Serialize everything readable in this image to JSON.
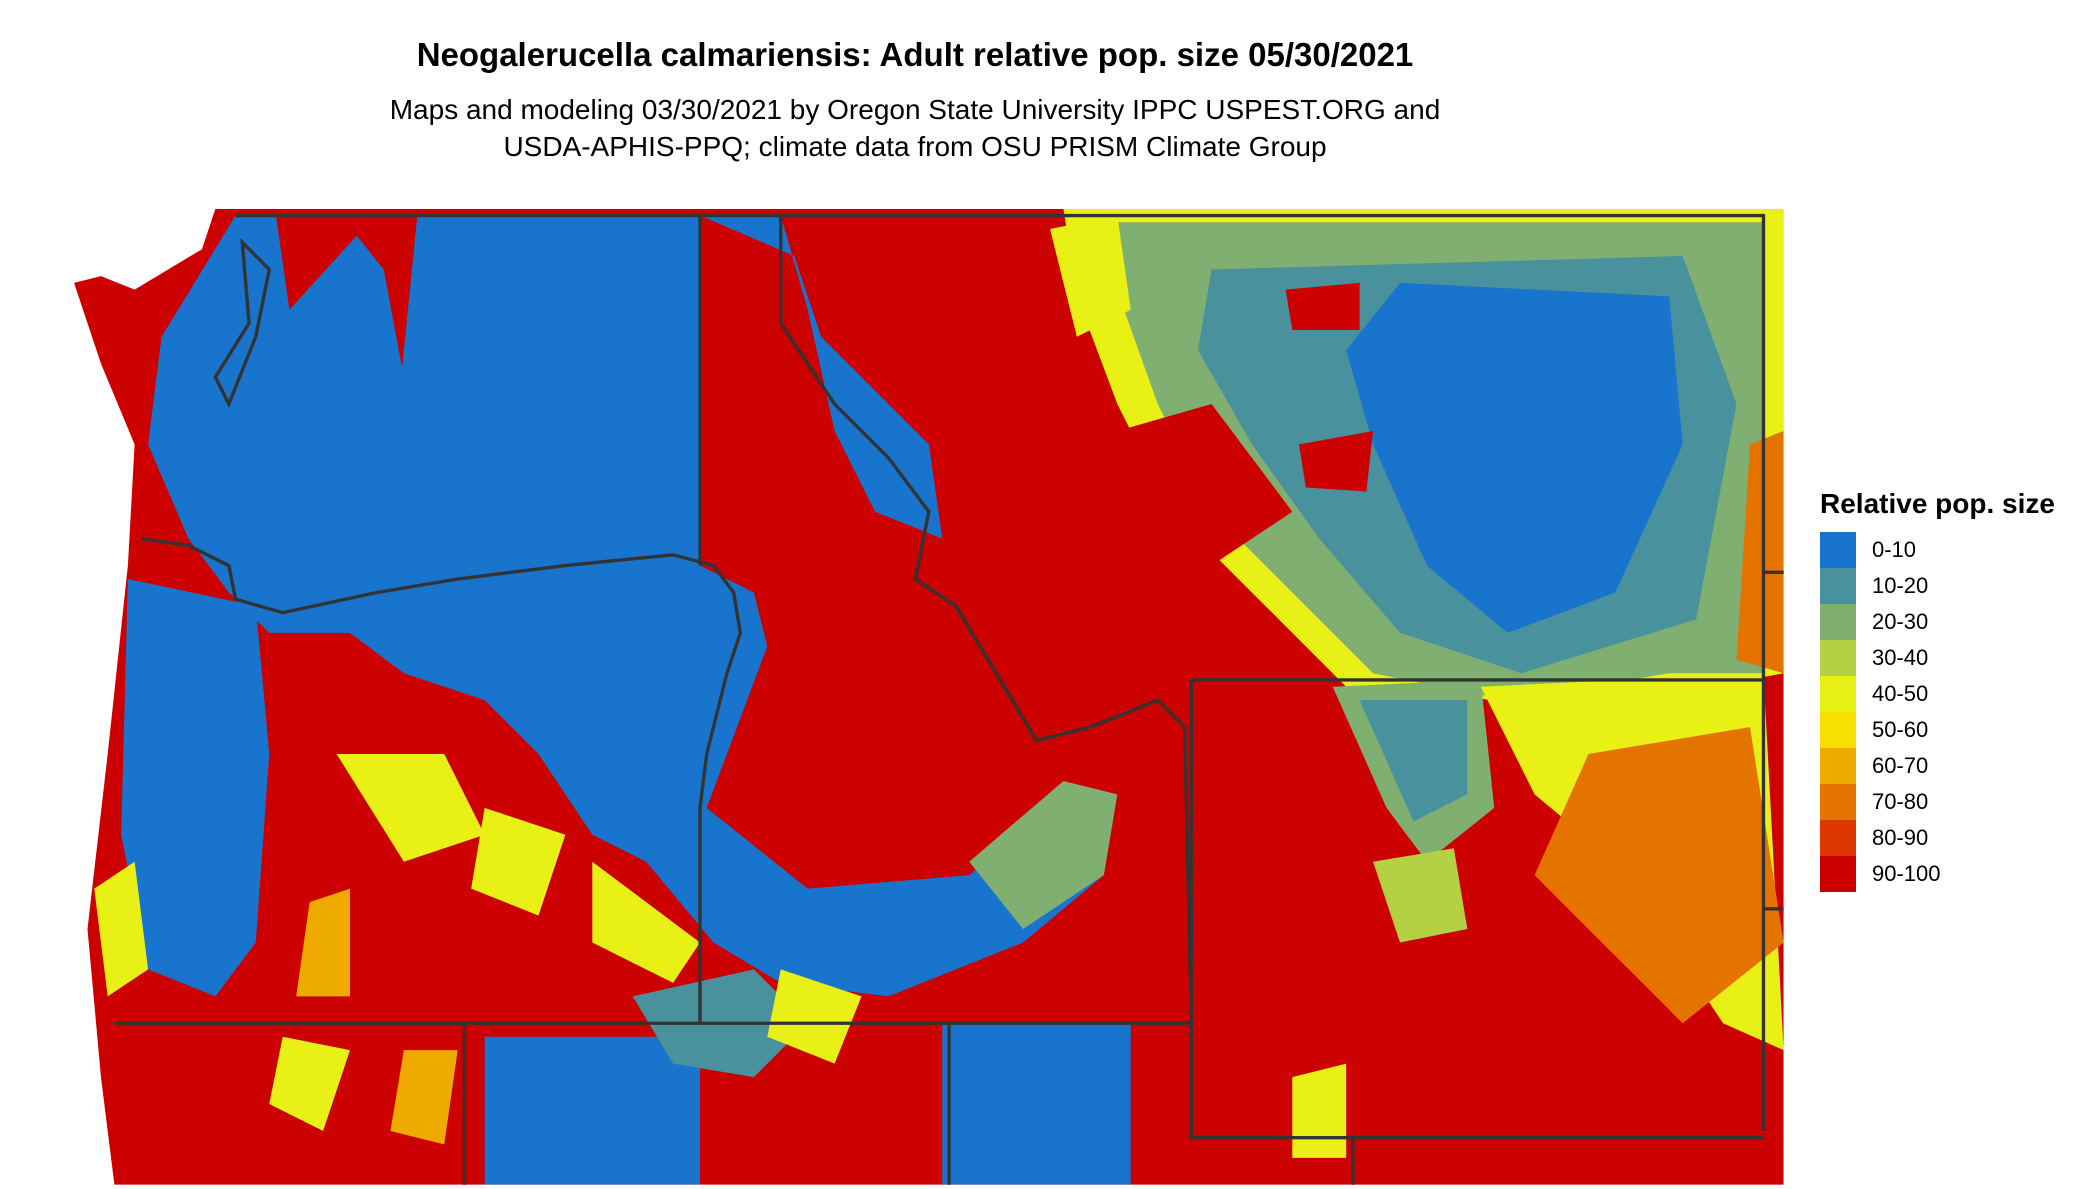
{
  "title": "Neogalerucella calmariensis: Adult relative pop. size 05/30/2021",
  "subtitle": [
    "Maps and modeling 03/30/2021 by Oregon State University IPPC USPEST.ORG and",
    "USDA-APHIS-PPQ; climate data from OSU PRISM Climate Group"
  ],
  "legend": {
    "title": "Relative pop. size",
    "items": [
      {
        "label": "0-10",
        "color": "#1874CD"
      },
      {
        "label": "10-20",
        "color": "#4A919E"
      },
      {
        "label": "20-30",
        "color": "#7FB071"
      },
      {
        "label": "30-40",
        "color": "#B3D143"
      },
      {
        "label": "40-50",
        "color": "#E8F016"
      },
      {
        "label": "50-60",
        "color": "#F8E000"
      },
      {
        "label": "60-70",
        "color": "#EFAA00"
      },
      {
        "label": "70-80",
        "color": "#E57300"
      },
      {
        "label": "80-90",
        "color": "#DC3800"
      },
      {
        "label": "90-100",
        "color": "#CD0000"
      }
    ]
  },
  "border_color": "#333333"
}
